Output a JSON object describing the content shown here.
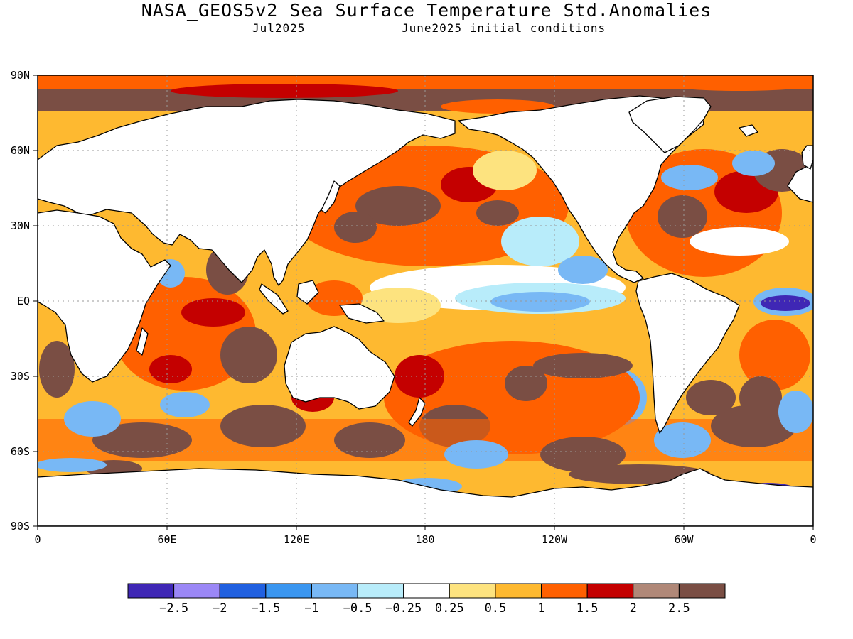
{
  "title": "NASA_GEOS5v2 Sea Surface Temperature Std.Anomalies",
  "subtitle_left": "Jul2025",
  "subtitle_right": "June2025 initial conditions",
  "lat_labels": [
    "90N",
    "60N",
    "30N",
    "EQ",
    "30S",
    "60S",
    "90S"
  ],
  "lon_labels": [
    "0",
    "60E",
    "120E",
    "180",
    "120W",
    "60W",
    "0"
  ],
  "legend": {
    "colors": [
      "#3f27b5",
      "#9b87f6",
      "#2060e0",
      "#3a96f0",
      "#78b8f5",
      "#b8ecfa",
      "#ffffff",
      "#fde37f",
      "#feb930",
      "#ff6000",
      "#c40000",
      "#b08878",
      "#7a4e44"
    ],
    "labels": [
      "-2.5",
      "-2",
      "-1.5",
      "-1",
      "-0.5",
      "-0.25",
      "0.25",
      "0.5",
      "1",
      "1.5",
      "2",
      "2.5"
    ]
  },
  "colors": {
    "land": "#ffffff",
    "ocean_base": "#feb930",
    "grid": "#999999"
  }
}
